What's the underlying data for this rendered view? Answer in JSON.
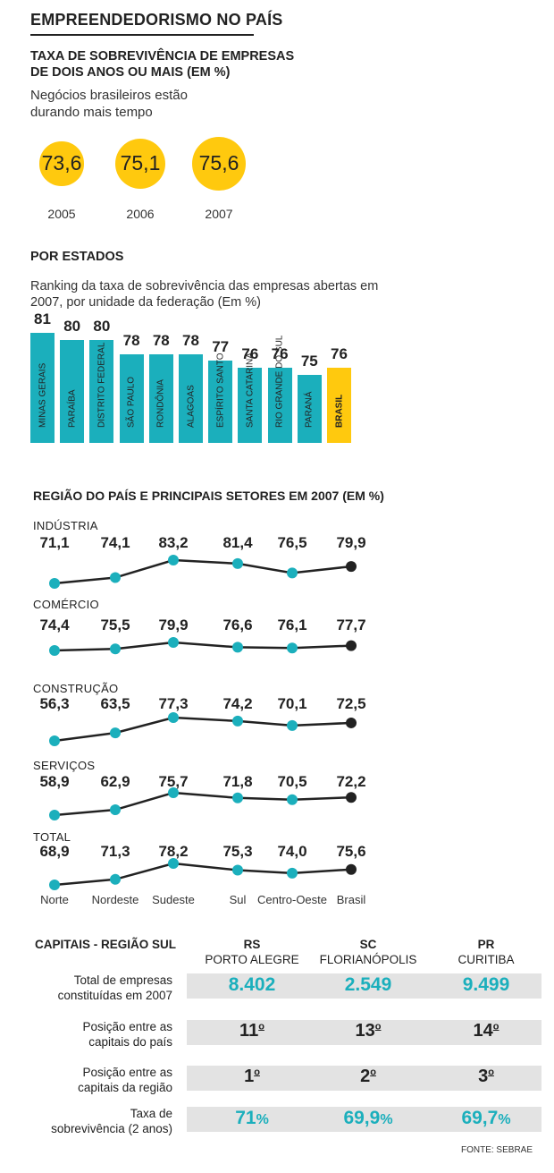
{
  "header": {
    "title": "EMPREENDEDORISMO NO PAÍS",
    "subtitle_line1": "TAXA DE SOBREVIVÊNCIA DE EMPRESAS",
    "subtitle_line2": "DE DOIS ANOS OU MAIS (EM %)",
    "intro_line1": "Negócios brasileiros estão",
    "intro_line2": "durando mais tempo"
  },
  "chart_data": [
    {
      "type": "bubble",
      "title": "TAXA DE SOBREVIVÊNCIA DE EMPRESAS DE DOIS ANOS OU MAIS (EM %)",
      "categories": [
        "2005",
        "2006",
        "2007"
      ],
      "values": [
        73.6,
        75.1,
        75.6
      ],
      "value_labels": [
        "73,6",
        "75,1",
        "75,6"
      ],
      "color": "#FFC90E"
    },
    {
      "type": "bar",
      "title": "POR ESTADOS",
      "description_line1": "Ranking da taxa de sobrevivência das empresas abertas em",
      "description_line2": "2007, por unidade da federação (Em %)",
      "categories": [
        "MINAS GERAIS",
        "PARAÍBA",
        "DISTRITO FEDERAL",
        "SÃO PAULO",
        "RONDÔNIA",
        "ALAGOAS",
        "ESPÍRITO SANTO",
        "SANTA CATARINA",
        "RIO GRANDE DO SUL",
        "PARANÁ",
        "BRASIL"
      ],
      "values": [
        81,
        80,
        80,
        78,
        78,
        78,
        77,
        76,
        76,
        75,
        76
      ],
      "colors": {
        "state": "#1BAFBC",
        "brasil": "#FFC90E"
      }
    },
    {
      "type": "line",
      "title": "REGIÃO DO PAÍS E PRINCIPAIS SETORES EM 2007 (EM %)",
      "categories": [
        "Norte",
        "Nordeste",
        "Sudeste",
        "Sul",
        "Centro-Oeste",
        "Brasil"
      ],
      "series": [
        {
          "name": "INDÚSTRIA",
          "values": [
            71.1,
            74.1,
            83.2,
            81.4,
            76.5,
            79.9
          ],
          "labels": [
            "71,1",
            "74,1",
            "83,2",
            "81,4",
            "76,5",
            "79,9"
          ]
        },
        {
          "name": "COMÉRCIO",
          "values": [
            74.4,
            75.5,
            79.9,
            76.6,
            76.1,
            77.7
          ],
          "labels": [
            "74,4",
            "75,5",
            "79,9",
            "76,6",
            "76,1",
            "77,7"
          ]
        },
        {
          "name": "CONSTRUÇÃO",
          "values": [
            56.3,
            63.5,
            77.3,
            74.2,
            70.1,
            72.5
          ],
          "labels": [
            "56,3",
            "63,5",
            "77,3",
            "74,2",
            "70,1",
            "72,5"
          ]
        },
        {
          "name": "SERVIÇOS",
          "values": [
            58.9,
            62.9,
            75.7,
            71.8,
            70.5,
            72.2
          ],
          "labels": [
            "58,9",
            "62,9",
            "75,7",
            "71,8",
            "70,5",
            "72,2"
          ]
        },
        {
          "name": "TOTAL",
          "values": [
            68.9,
            71.3,
            78.2,
            75.3,
            74.0,
            75.6
          ],
          "labels": [
            "68,9",
            "71,3",
            "78,2",
            "75,3",
            "74,0",
            "75,6"
          ]
        }
      ],
      "colors": {
        "region": "#1BAFBC",
        "brasil": "#222222",
        "line": "#222222"
      }
    },
    {
      "type": "table",
      "title": "CAPITAIS - REGIÃO SUL",
      "columns": [
        {
          "state": "RS",
          "city": "PORTO ALEGRE"
        },
        {
          "state": "SC",
          "city": "FLORIANÓPOLIS"
        },
        {
          "state": "PR",
          "city": "CURITIBA"
        }
      ],
      "rows": [
        {
          "label_line1": "Total de empresas",
          "label_line2": "constituídas em 2007",
          "values": [
            "8.402",
            "2.549",
            "9.499"
          ],
          "style": "blue"
        },
        {
          "label_line1": "Posição entre as",
          "label_line2": "capitais do país",
          "values": [
            "11",
            "13",
            "14"
          ],
          "suffix": "o",
          "style": "dark"
        },
        {
          "label_line1": "Posição entre as",
          "label_line2": "capitais da região",
          "values": [
            "1",
            "2",
            "3"
          ],
          "suffix": "o",
          "style": "dark"
        },
        {
          "label_line1": "Taxa de",
          "label_line2": "sobrevivência (2 anos)",
          "values": [
            "71",
            "69,9",
            "69,7"
          ],
          "suffix": "%",
          "style": "blue"
        }
      ]
    }
  ],
  "source": "FONTE: SEBRAE"
}
